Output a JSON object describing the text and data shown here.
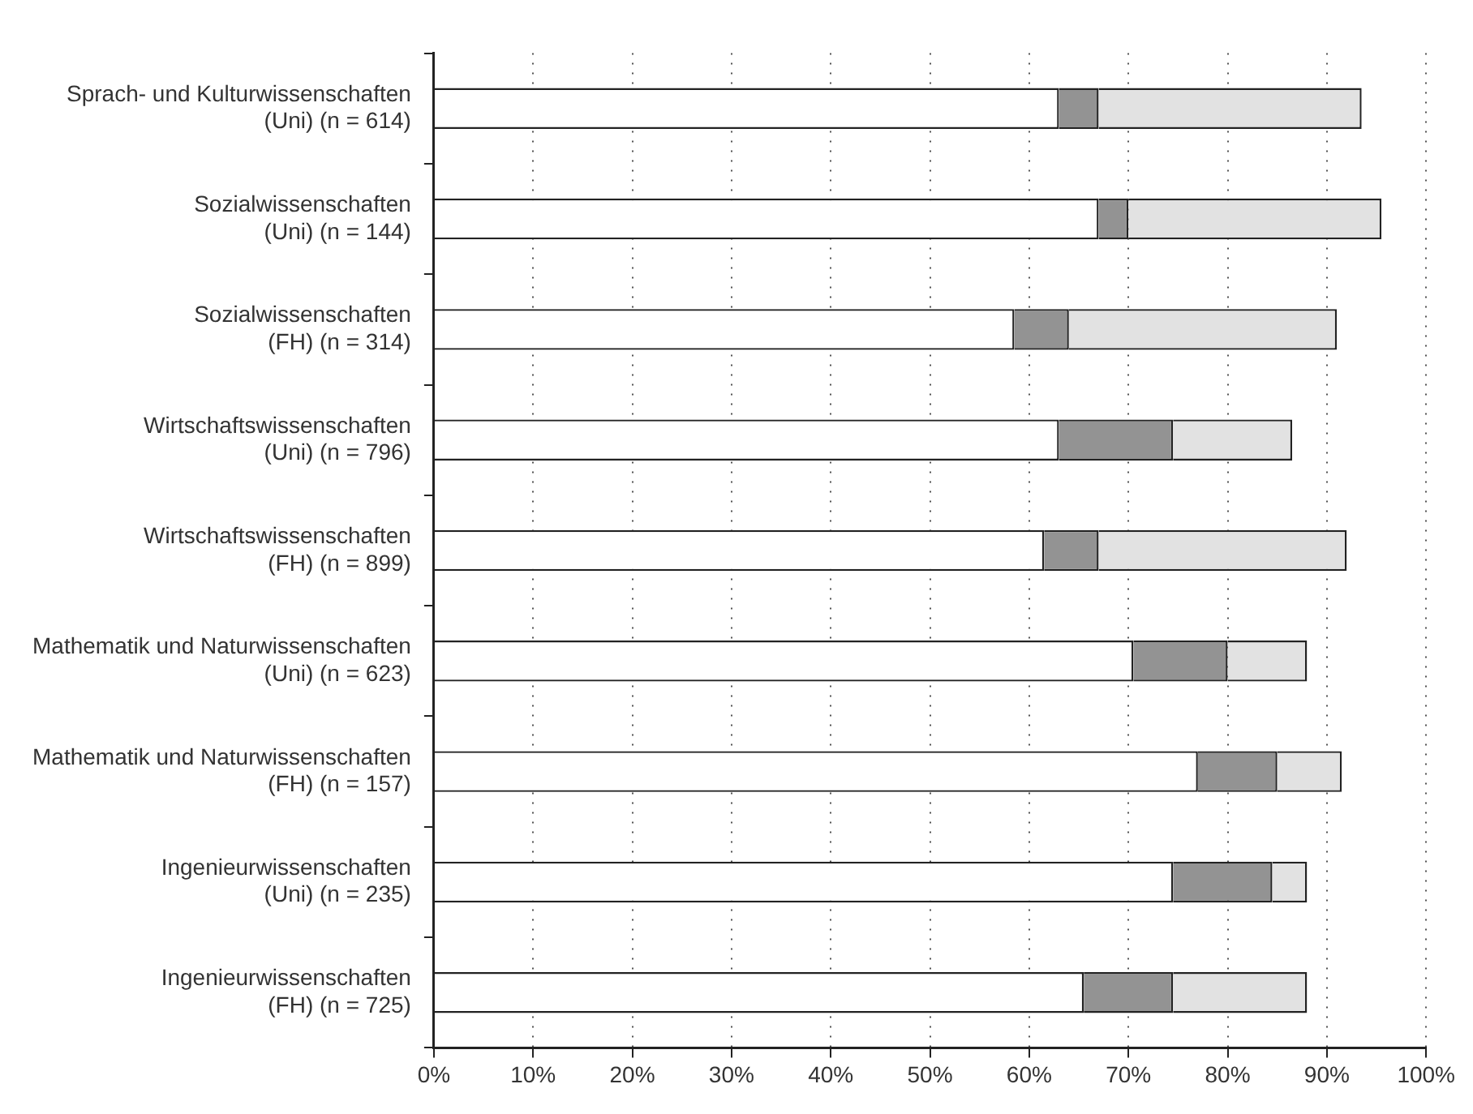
{
  "chart_data": {
    "type": "bar",
    "orientation": "horizontal",
    "stacked": true,
    "grid": "x",
    "legend": false,
    "categories": [
      "Sprach- und Kulturwissenschaften\n(Uni) (n = 614)",
      "Sozialwissenschaften\n(Uni) (n = 144)",
      "Sozialwissenschaften\n(FH) (n = 314)",
      "Wirtschaftswissenschaften\n(Uni) (n = 796)",
      "Wirtschaftswissenschaften\n(FH) (n = 899)",
      "Mathematik und Naturwissenschaften\n(Uni) (n = 623)",
      "Mathematik und Naturwissenschaften\n(FH) (n = 157)",
      "Ingenieurwissenschaften\n(Uni) (n = 235)",
      "Ingenieurwissenschaften\n(FH) (n = 725)"
    ],
    "series": [
      {
        "color": "#ffffff",
        "values": [
          63,
          67,
          58.5,
          63,
          61.5,
          70.5,
          77,
          74.5,
          65.5
        ]
      },
      {
        "color": "#939393",
        "values": [
          4,
          3,
          5.5,
          11.5,
          5.5,
          9.5,
          8,
          10,
          9
        ]
      },
      {
        "color": "#e2e2e2",
        "values": [
          26.5,
          25.5,
          27,
          12,
          25,
          8,
          6.5,
          3.5,
          13.5
        ]
      }
    ],
    "xlim": [
      0,
      100
    ],
    "xticks": [
      {
        "value": 0,
        "label": "0%"
      },
      {
        "value": 10,
        "label": "10%"
      },
      {
        "value": 20,
        "label": "20%"
      },
      {
        "value": 30,
        "label": "30%"
      },
      {
        "value": 40,
        "label": "40%"
      },
      {
        "value": 50,
        "label": "50%"
      },
      {
        "value": 60,
        "label": "60%"
      },
      {
        "value": 70,
        "label": "70%"
      },
      {
        "value": 80,
        "label": "80%"
      },
      {
        "value": 90,
        "label": "90%"
      },
      {
        "value": 100,
        "label": "100%"
      }
    ]
  }
}
